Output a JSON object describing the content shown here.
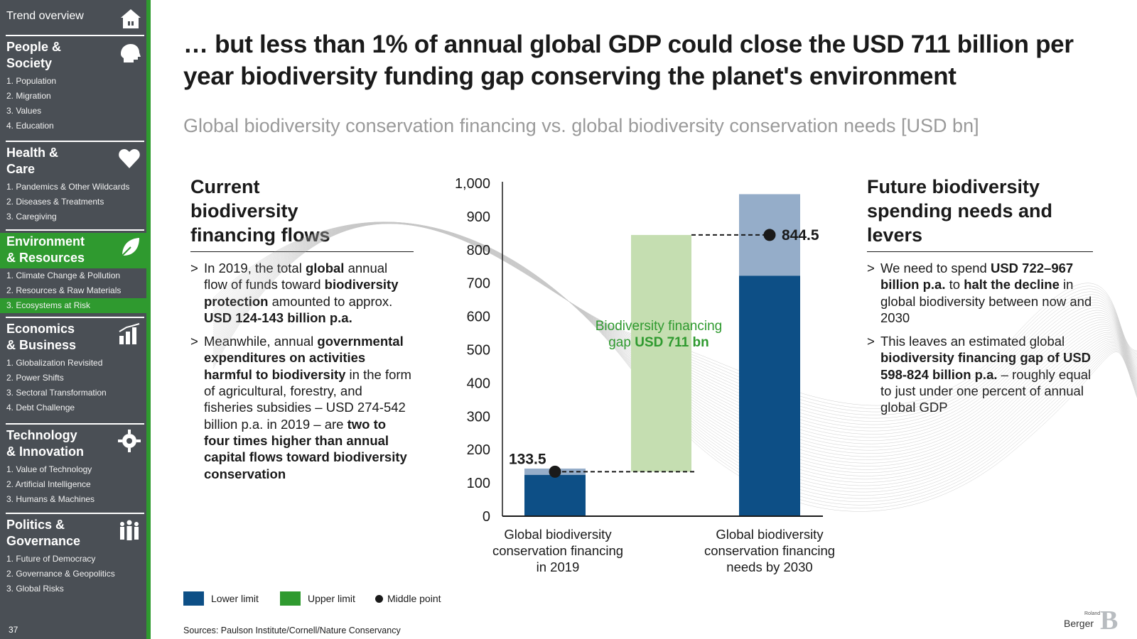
{
  "sidebar": {
    "top_label": "Trend overview",
    "sections": [
      {
        "title_lines": [
          "People &",
          "Society"
        ],
        "icon": "head-icon",
        "items": [
          "1. Population",
          "2. Migration",
          "3. Values",
          "4. Education"
        ]
      },
      {
        "title_lines": [
          "Health &",
          "Care"
        ],
        "icon": "heart-icon",
        "items": [
          "1. Pandemics & Other Wildcards",
          "2. Diseases & Treatments",
          "3. Caregiving"
        ]
      },
      {
        "title_lines": [
          "Environment",
          "& Resources"
        ],
        "icon": "leaf-icon",
        "items": [
          "1. Climate Change & Pollution",
          "2. Resources & Raw Materials",
          "3. Ecosystems at Risk"
        ]
      },
      {
        "title_lines": [
          "Economics",
          "& Business"
        ],
        "icon": "business-chart-icon",
        "items": [
          "1. Globalization Revisited",
          "2. Power Shifts",
          "3. Sectoral Transformation",
          "4. Debt Challenge"
        ]
      },
      {
        "title_lines": [
          "Technology",
          "& Innovation"
        ],
        "icon": "tech-gear-icon",
        "items": [
          "1. Value of Technology",
          "2. Artificial Intelligence",
          "3. Humans & Machines"
        ]
      },
      {
        "title_lines": [
          "Politics &",
          "Governance"
        ],
        "icon": "people-group-icon",
        "items": [
          "1. Future of Democracy",
          "2. Governance & Geopolitics",
          "3. Global Risks"
        ]
      }
    ],
    "page_number": "37"
  },
  "headline": "… but less than 1% of annual global GDP could close the USD 711 billion per year biodiversity funding gap conserving the planet's environment",
  "subtitle": "Global biodiversity conservation financing vs. global biodiversity conservation needs [USD bn]",
  "left_column": {
    "title_lines": [
      "Current",
      "biodiversity",
      "financing flows"
    ],
    "bullets": [
      [
        {
          "t": "In 2019, the total ",
          "b": false
        },
        {
          "t": "global",
          "b": true
        },
        {
          "t": " annual flow of funds toward ",
          "b": false
        },
        {
          "t": "biodiversity protection",
          "b": true
        },
        {
          "t": " amounted to approx. ",
          "b": false
        },
        {
          "t": "USD 124-143 billion p.a.",
          "b": true
        }
      ],
      [
        {
          "t": "Meanwhile, annual ",
          "b": false
        },
        {
          "t": "governmental expenditures on activities harmful to biodiversity",
          "b": true
        },
        {
          "t": " in the form of agricultural, forestry, and fisheries subsidies – USD 274-542 billion p.a. in 2019 – are ",
          "b": false
        },
        {
          "t": "two to four times higher than annual capital flows toward biodiversity conservation",
          "b": true
        }
      ]
    ]
  },
  "right_column": {
    "title_lines": [
      "Future biodiversity",
      "spending needs and",
      "levers"
    ],
    "bullets": [
      [
        {
          "t": "We need to spend ",
          "b": false
        },
        {
          "t": "USD 722–967 billion p.a.",
          "b": true
        },
        {
          "t": " to ",
          "b": false
        },
        {
          "t": "halt the decline",
          "b": true
        },
        {
          "t": " in global biodiversity between now and 2030",
          "b": false
        }
      ],
      [
        {
          "t": "This leaves an estimated global ",
          "b": false
        },
        {
          "t": "biodiversity financing gap of USD 598-824 billion p.a.",
          "b": true
        },
        {
          "t": " – roughly equal to just under one percent of annual global GDP",
          "b": false
        }
      ]
    ]
  },
  "chart_data": {
    "type": "bar",
    "categories": [
      [
        "Global biodiversity",
        "conservation financing",
        "in 2019"
      ],
      [
        "Global biodiversity",
        "conservation financing",
        "needs by 2030"
      ]
    ],
    "series": [
      {
        "name": "Lower limit",
        "values": [
          124,
          722
        ]
      },
      {
        "name": "Upper limit",
        "values": [
          143,
          967
        ]
      },
      {
        "name": "Middle point",
        "values": [
          133.5,
          844.5
        ]
      }
    ],
    "gap": {
      "from": 133.5,
      "to": 844.5,
      "label_parts": [
        {
          "t": "Biodiversity financing",
          "b": false
        },
        {
          "t": "gap ",
          "b": false
        },
        {
          "t": "USD 711 bn",
          "b": true
        }
      ]
    },
    "data_labels": [
      "133.5",
      "844.5"
    ],
    "yticks": [
      0,
      100,
      200,
      300,
      400,
      500,
      600,
      700,
      800,
      900,
      1000
    ],
    "ytick_labels": [
      "0",
      "100",
      "200",
      "300",
      "400",
      "500",
      "600",
      "700",
      "800",
      "900",
      "1,000"
    ],
    "ylim": [
      0,
      1000
    ]
  },
  "legend": {
    "lower": "Lower limit",
    "upper": "Upper limit",
    "middle": "Middle point"
  },
  "colors": {
    "lower": "#0d4f86",
    "upper_light_blue": "#95adc9",
    "gap_green": "#c5deb1",
    "legend_green": "#2f9a2f",
    "sidebar": "#4a4f55"
  },
  "sources": "Sources: Paulson Institute/Cornell/Nature Conservancy",
  "logo": {
    "small": "Roland",
    "main": "Berger"
  }
}
